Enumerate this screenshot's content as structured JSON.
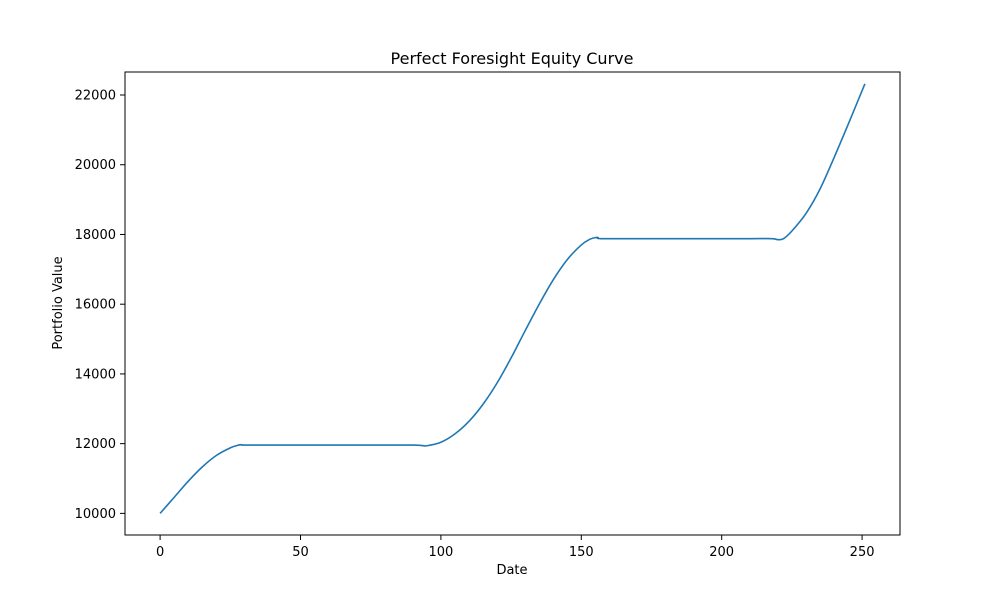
{
  "chart_data": {
    "type": "line",
    "title": "Perfect Foresight Equity Curve",
    "xlabel": "Date",
    "ylabel": "Portfolio Value",
    "xlim": [
      -12.5,
      263.5
    ],
    "ylim": [
      9380,
      22660
    ],
    "xticks": [
      0,
      50,
      100,
      150,
      200,
      250
    ],
    "yticks": [
      10000,
      12000,
      14000,
      16000,
      18000,
      20000,
      22000
    ],
    "grid": false,
    "legend": "none",
    "series": [
      {
        "color": "#1f77b4",
        "points": [
          [
            0,
            10000
          ],
          [
            5,
            10460
          ],
          [
            10,
            10920
          ],
          [
            15,
            11330
          ],
          [
            20,
            11660
          ],
          [
            25,
            11880
          ],
          [
            28,
            11960
          ],
          [
            29,
            11970
          ],
          [
            30,
            11960
          ],
          [
            40,
            11960
          ],
          [
            60,
            11960
          ],
          [
            80,
            11960
          ],
          [
            90,
            11960
          ],
          [
            93,
            11950
          ],
          [
            95,
            11940
          ],
          [
            100,
            12040
          ],
          [
            105,
            12280
          ],
          [
            110,
            12640
          ],
          [
            115,
            13130
          ],
          [
            120,
            13740
          ],
          [
            125,
            14460
          ],
          [
            130,
            15240
          ],
          [
            135,
            16000
          ],
          [
            140,
            16700
          ],
          [
            145,
            17280
          ],
          [
            150,
            17700
          ],
          [
            153,
            17860
          ],
          [
            155,
            17910
          ],
          [
            156,
            17910
          ],
          [
            157,
            17880
          ],
          [
            170,
            17880
          ],
          [
            190,
            17880
          ],
          [
            210,
            17880
          ],
          [
            218,
            17880
          ],
          [
            220,
            17850
          ],
          [
            222,
            17880
          ],
          [
            225,
            18100
          ],
          [
            230,
            18600
          ],
          [
            235,
            19300
          ],
          [
            240,
            20200
          ],
          [
            245,
            21150
          ],
          [
            251,
            22320
          ]
        ]
      }
    ]
  }
}
